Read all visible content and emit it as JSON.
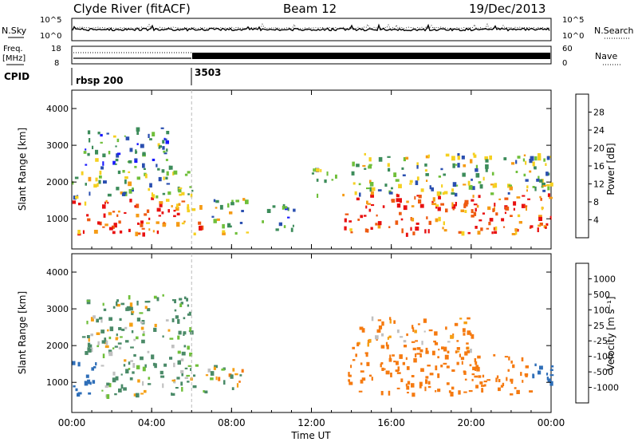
{
  "header": {
    "station": "Clyde River (fitACF)",
    "beam": "Beam 12",
    "date": "19/Dec/2013"
  },
  "top_panels": {
    "nsky_label": "N.Sky",
    "nsky_ticks": [
      "10^5",
      "10^0"
    ],
    "nsearch_label": "N.Search",
    "nsearch_ticks": [
      "10^5",
      "10^0"
    ],
    "freq_label": "Freq.",
    "freq_unit": "[MHz]",
    "freq_ticks": [
      "18",
      "8"
    ],
    "nave_label": "Nave",
    "nave_ticks": [
      "60",
      "0"
    ],
    "cpid_label": "CPID",
    "cpid_entries": [
      {
        "name": "rbsp 200",
        "start": "00:00"
      },
      {
        "name": "3503",
        "start": "06:00"
      }
    ]
  },
  "chart_data": [
    {
      "type": "heatmap",
      "title": "",
      "xlabel": "Time UT",
      "ylabel": "Slant Range [km]",
      "x_ticks": [
        "00:00",
        "04:00",
        "08:00",
        "12:00",
        "16:00",
        "20:00",
        "00:00"
      ],
      "y_ticks": [
        1000,
        2000,
        3000,
        4000
      ],
      "xlim_hours": [
        0,
        24
      ],
      "ylim_km": [
        180,
        4500
      ],
      "colorbar": {
        "label": "Power [dB]",
        "ticks": [
          4,
          8,
          12,
          16,
          20,
          24,
          28
        ],
        "colors": [
          "#1818ff",
          "#2a4fb0",
          "#3c8c5a",
          "#6fbf3a",
          "#f5d020",
          "#f59b15",
          "#ee5a10",
          "#e81010"
        ]
      },
      "regions": [
        {
          "t": [
            0.0,
            6.5
          ],
          "r": [
            600,
            1600
          ],
          "value": 26
        },
        {
          "t": [
            0.0,
            6.0
          ],
          "r": [
            1600,
            2400
          ],
          "value": 13
        },
        {
          "t": [
            0.5,
            5.0
          ],
          "r": [
            2400,
            3500
          ],
          "value": 9
        },
        {
          "t": [
            7.0,
            8.8
          ],
          "r": [
            600,
            1600
          ],
          "value": 14
        },
        {
          "t": [
            9.5,
            11.2
          ],
          "r": [
            700,
            1400
          ],
          "value": 8
        },
        {
          "t": [
            12.0,
            13.2
          ],
          "r": [
            1600,
            2400
          ],
          "value": 10
        },
        {
          "t": [
            13.5,
            24.0
          ],
          "r": [
            600,
            1700
          ],
          "value": 27
        },
        {
          "t": [
            14.0,
            24.0
          ],
          "r": [
            1700,
            2800
          ],
          "value": 13
        }
      ]
    },
    {
      "type": "heatmap",
      "title": "",
      "xlabel": "Time UT",
      "ylabel": "Slant Range [km]",
      "x_ticks": [
        "00:00",
        "04:00",
        "08:00",
        "12:00",
        "16:00",
        "20:00",
        "00:00"
      ],
      "y_ticks": [
        1000,
        2000,
        3000,
        4000
      ],
      "xlim_hours": [
        0,
        24
      ],
      "ylim_km": [
        180,
        4500
      ],
      "colorbar": {
        "label": "Velocity [m s⁻¹]",
        "ticks": [
          1000,
          500,
          100,
          25,
          -25,
          -100,
          -500,
          -1000
        ],
        "colors": [
          "#1c3aa8",
          "#2e6eb8",
          "#4a8a68",
          "#6fbf3a",
          "#c0c0c0",
          "#f5a015",
          "#f57a10",
          "#e84010",
          "#e80000"
        ]
      },
      "regions": [
        {
          "t": [
            0.0,
            1.2
          ],
          "r": [
            700,
            1700
          ],
          "value": 800
        },
        {
          "t": [
            1.2,
            6.2
          ],
          "r": [
            650,
            1700
          ],
          "value": 150
        },
        {
          "t": [
            6.2,
            8.5
          ],
          "r": [
            750,
            1500
          ],
          "value": 60
        },
        {
          "t": [
            0.5,
            6.0
          ],
          "r": [
            1700,
            3400
          ],
          "value": 120
        },
        {
          "t": [
            13.8,
            23.0
          ],
          "r": [
            700,
            1800
          ],
          "value": -300
        },
        {
          "t": [
            14.0,
            20.0
          ],
          "r": [
            1800,
            2800
          ],
          "value": -150
        },
        {
          "t": [
            23.0,
            24.0
          ],
          "r": [
            800,
            1700
          ],
          "value": 700
        }
      ]
    }
  ]
}
